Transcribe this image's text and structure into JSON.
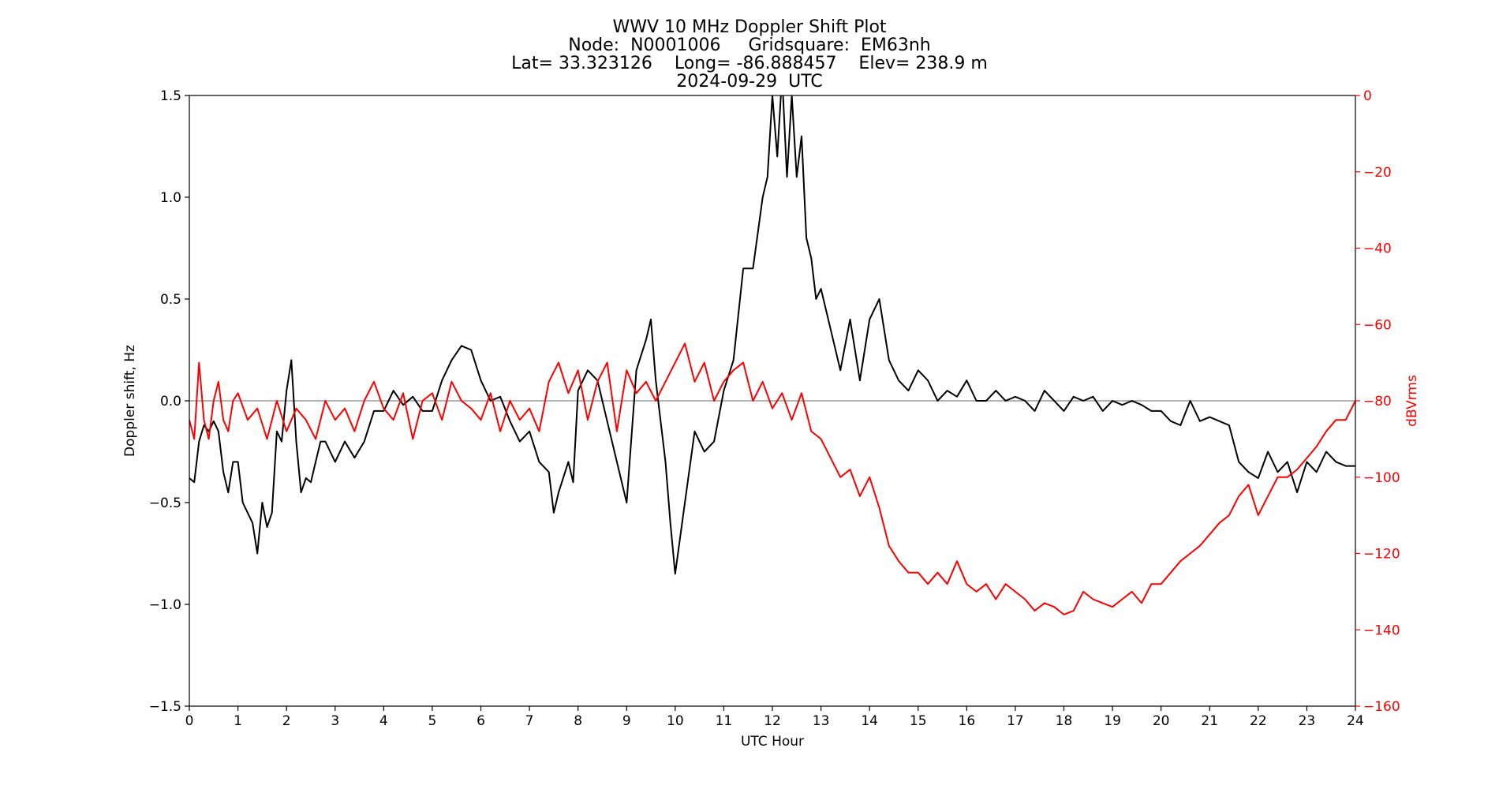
{
  "chart_data": {
    "type": "line",
    "title_lines": [
      "WWV 10 MHz Doppler Shift Plot",
      "Node:  N0001006     Gridsquare:  EM63nh",
      "Lat= 33.323126    Long= -86.888457    Elev= 238.9 m",
      "2024-09-29  UTC"
    ],
    "xlabel": "UTC Hour",
    "ylabel": "Doppler shift, Hz",
    "y2label": "dBVrms",
    "xlim": [
      0,
      24
    ],
    "ylim": [
      -1.5,
      1.5
    ],
    "y2lim": [
      -160,
      0
    ],
    "xticks": [
      "0",
      "1",
      "2",
      "3",
      "4",
      "5",
      "6",
      "7",
      "8",
      "9",
      "10",
      "11",
      "12",
      "13",
      "14",
      "15",
      "16",
      "17",
      "18",
      "19",
      "20",
      "21",
      "22",
      "23",
      "24"
    ],
    "yticks": [
      "−1.5",
      "−1.0",
      "−0.5",
      "0.0",
      "0.5",
      "1.0",
      "1.5"
    ],
    "y2ticks": [
      "−160",
      "−140",
      "−120",
      "−100",
      "−80",
      "−60",
      "−40",
      "−20",
      "0"
    ],
    "colors": {
      "doppler": "#000000",
      "power": "#ff0000",
      "zero_line": "#888888"
    },
    "series": [
      {
        "axis": "left",
        "color": "#000000",
        "x": [
          0,
          0.1,
          0.2,
          0.3,
          0.4,
          0.5,
          0.6,
          0.7,
          0.8,
          0.9,
          1.0,
          1.1,
          1.2,
          1.3,
          1.4,
          1.5,
          1.6,
          1.7,
          1.8,
          1.9,
          2.0,
          2.1,
          2.2,
          2.3,
          2.4,
          2.5,
          2.6,
          2.7,
          2.8,
          2.9,
          3.0,
          3.2,
          3.4,
          3.6,
          3.8,
          4.0,
          4.2,
          4.4,
          4.6,
          4.8,
          5.0,
          5.2,
          5.4,
          5.6,
          5.8,
          6.0,
          6.2,
          6.4,
          6.6,
          6.8,
          7.0,
          7.2,
          7.4,
          7.5,
          7.6,
          7.8,
          7.9,
          8.0,
          8.2,
          8.4,
          8.6,
          8.8,
          9.0,
          9.2,
          9.4,
          9.5,
          9.6,
          9.8,
          9.9,
          10.0,
          10.2,
          10.4,
          10.6,
          10.8,
          11.0,
          11.2,
          11.4,
          11.6,
          11.8,
          11.9,
          12.0,
          12.1,
          12.2,
          12.3,
          12.4,
          12.5,
          12.6,
          12.7,
          12.8,
          12.9,
          13.0,
          13.2,
          13.4,
          13.6,
          13.8,
          14.0,
          14.2,
          14.4,
          14.6,
          14.8,
          15.0,
          15.2,
          15.4,
          15.6,
          15.8,
          16.0,
          16.2,
          16.4,
          16.6,
          16.8,
          17.0,
          17.2,
          17.4,
          17.6,
          17.8,
          18.0,
          18.2,
          18.4,
          18.6,
          18.8,
          19.0,
          19.2,
          19.4,
          19.6,
          19.8,
          20.0,
          20.2,
          20.4,
          20.6,
          20.8,
          21.0,
          21.2,
          21.4,
          21.6,
          21.8,
          22.0,
          22.2,
          22.4,
          22.6,
          22.8,
          23.0,
          23.2,
          23.4,
          23.6,
          23.8,
          24.0
        ],
        "y": [
          -0.38,
          -0.4,
          -0.2,
          -0.12,
          -0.15,
          -0.1,
          -0.15,
          -0.35,
          -0.45,
          -0.3,
          -0.3,
          -0.5,
          -0.55,
          -0.6,
          -0.75,
          -0.5,
          -0.62,
          -0.55,
          -0.15,
          -0.2,
          0.05,
          0.2,
          -0.2,
          -0.45,
          -0.38,
          -0.4,
          -0.3,
          -0.2,
          -0.2,
          -0.25,
          -0.3,
          -0.2,
          -0.28,
          -0.2,
          -0.05,
          -0.05,
          0.05,
          -0.02,
          0.02,
          -0.05,
          -0.05,
          0.1,
          0.2,
          0.27,
          0.25,
          0.1,
          0.0,
          0.02,
          -0.1,
          -0.2,
          -0.15,
          -0.3,
          -0.35,
          -0.55,
          -0.45,
          -0.3,
          -0.4,
          0.05,
          0.15,
          0.1,
          -0.1,
          -0.3,
          -0.5,
          0.15,
          0.3,
          0.4,
          0.1,
          -0.3,
          -0.6,
          -0.85,
          -0.5,
          -0.15,
          -0.25,
          -0.2,
          0.05,
          0.2,
          0.65,
          0.65,
          1.0,
          1.1,
          1.5,
          1.2,
          1.6,
          1.1,
          1.5,
          1.1,
          1.3,
          0.8,
          0.7,
          0.5,
          0.55,
          0.35,
          0.15,
          0.4,
          0.1,
          0.4,
          0.5,
          0.2,
          0.1,
          0.05,
          0.15,
          0.1,
          0.0,
          0.05,
          0.02,
          0.1,
          0.0,
          0.0,
          0.05,
          0.0,
          0.02,
          0.0,
          -0.05,
          0.05,
          0.0,
          -0.05,
          0.02,
          0.0,
          0.02,
          -0.05,
          0.0,
          -0.02,
          0.0,
          -0.02,
          -0.05,
          -0.05,
          -0.1,
          -0.12,
          0.0,
          -0.1,
          -0.08,
          -0.1,
          -0.12,
          -0.3,
          -0.35,
          -0.38,
          -0.25,
          -0.35,
          -0.3,
          -0.45,
          -0.3,
          -0.35,
          -0.25,
          -0.3,
          -0.32,
          -0.32
        ]
      },
      {
        "axis": "right",
        "color": "#ff0000",
        "x": [
          0,
          0.1,
          0.2,
          0.3,
          0.4,
          0.5,
          0.6,
          0.7,
          0.8,
          0.9,
          1.0,
          1.2,
          1.4,
          1.6,
          1.8,
          2.0,
          2.2,
          2.4,
          2.6,
          2.8,
          3.0,
          3.2,
          3.4,
          3.6,
          3.8,
          4.0,
          4.2,
          4.4,
          4.6,
          4.8,
          5.0,
          5.2,
          5.4,
          5.6,
          5.8,
          6.0,
          6.2,
          6.4,
          6.6,
          6.8,
          7.0,
          7.2,
          7.4,
          7.6,
          7.8,
          8.0,
          8.2,
          8.4,
          8.6,
          8.8,
          9.0,
          9.2,
          9.4,
          9.6,
          9.8,
          10.0,
          10.2,
          10.4,
          10.6,
          10.8,
          11.0,
          11.2,
          11.4,
          11.6,
          11.8,
          12.0,
          12.2,
          12.4,
          12.6,
          12.8,
          13.0,
          13.2,
          13.4,
          13.6,
          13.8,
          14.0,
          14.2,
          14.4,
          14.6,
          14.8,
          15.0,
          15.2,
          15.4,
          15.6,
          15.8,
          16.0,
          16.2,
          16.4,
          16.6,
          16.8,
          17.0,
          17.2,
          17.4,
          17.6,
          17.8,
          18.0,
          18.2,
          18.4,
          18.6,
          18.8,
          19.0,
          19.2,
          19.4,
          19.6,
          19.8,
          20.0,
          20.2,
          20.4,
          20.6,
          20.8,
          21.0,
          21.2,
          21.4,
          21.6,
          21.8,
          22.0,
          22.2,
          22.4,
          22.6,
          22.8,
          23.0,
          23.2,
          23.4,
          23.6,
          23.8,
          24.0
        ],
        "y": [
          -85,
          -90,
          -70,
          -85,
          -90,
          -80,
          -75,
          -85,
          -88,
          -80,
          -78,
          -85,
          -82,
          -90,
          -80,
          -88,
          -82,
          -85,
          -90,
          -80,
          -85,
          -82,
          -88,
          -80,
          -75,
          -82,
          -85,
          -78,
          -90,
          -80,
          -78,
          -85,
          -75,
          -80,
          -82,
          -85,
          -78,
          -88,
          -80,
          -85,
          -82,
          -88,
          -75,
          -70,
          -78,
          -72,
          -85,
          -75,
          -70,
          -88,
          -72,
          -78,
          -75,
          -80,
          -75,
          -70,
          -65,
          -75,
          -70,
          -80,
          -75,
          -72,
          -70,
          -80,
          -75,
          -82,
          -78,
          -85,
          -78,
          -88,
          -90,
          -95,
          -100,
          -98,
          -105,
          -100,
          -108,
          -118,
          -122,
          -125,
          -125,
          -128,
          -125,
          -128,
          -122,
          -128,
          -130,
          -128,
          -132,
          -128,
          -130,
          -132,
          -135,
          -133,
          -134,
          -136,
          -135,
          -130,
          -132,
          -133,
          -134,
          -132,
          -130,
          -133,
          -128,
          -128,
          -125,
          -122,
          -120,
          -118,
          -115,
          -112,
          -110,
          -105,
          -102,
          -110,
          -105,
          -100,
          -100,
          -98,
          -95,
          -92,
          -88,
          -85,
          -85,
          -80
        ]
      }
    ]
  }
}
